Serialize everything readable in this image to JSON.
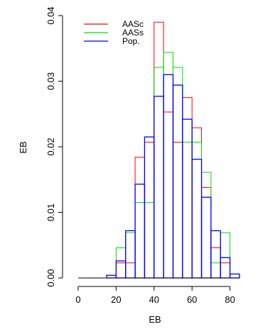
{
  "chart_data": {
    "type": "histogram",
    "xlabel": "EB",
    "ylabel": "EB",
    "xlim": [
      0,
      85
    ],
    "ylim": [
      0,
      0.04
    ],
    "x_ticks": [
      0,
      20,
      40,
      60,
      80
    ],
    "x_tick_labels": [
      "0",
      "20",
      "40",
      "60",
      "80"
    ],
    "y_ticks": [
      0.0,
      0.01,
      0.02,
      0.03,
      0.04
    ],
    "y_tick_labels": [
      "0.00",
      "0.01",
      "0.02",
      "0.03",
      "0.04"
    ],
    "bin_edges": [
      15,
      20,
      25,
      30,
      35,
      40,
      45,
      50,
      55,
      60,
      65,
      70,
      75,
      80,
      85
    ],
    "legend_position": "top-left",
    "grid": false,
    "series": [
      {
        "name": "AASc",
        "color": "#ff0000",
        "values": [
          0.0,
          0.0023,
          0.0023,
          0.0184,
          0.0207,
          0.039,
          0.0253,
          0.0207,
          0.0275,
          0.0229,
          0.0138,
          0.0046,
          0.0023,
          0.0
        ]
      },
      {
        "name": "AASs",
        "color": "#00dd00",
        "values": [
          0.0,
          0.0046,
          0.0069,
          0.0115,
          0.0115,
          0.0321,
          0.0344,
          0.0321,
          0.0207,
          0.0207,
          0.0161,
          0.0023,
          0.0069,
          0.0
        ]
      },
      {
        "name": "Pop.",
        "color": "#0000ff",
        "values": [
          0.0004,
          0.0026,
          0.0072,
          0.0143,
          0.0215,
          0.0277,
          0.031,
          0.0294,
          0.0242,
          0.0181,
          0.0123,
          0.0072,
          0.0031,
          0.0006
        ]
      }
    ]
  }
}
